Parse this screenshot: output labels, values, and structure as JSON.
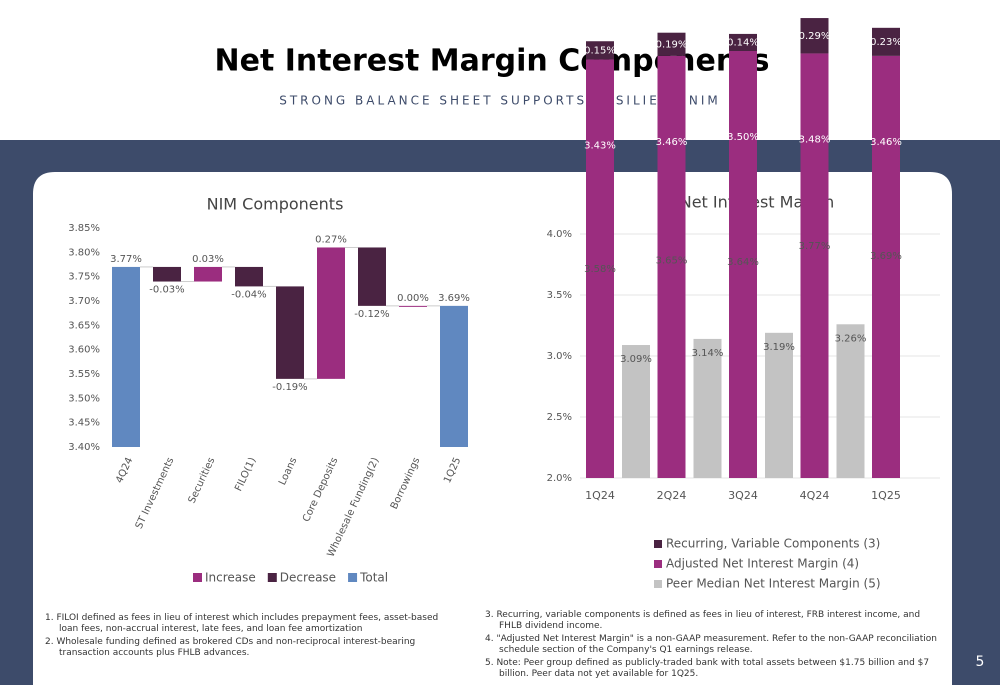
{
  "title": "Net Interest Margin Components",
  "subtitle": "STRONG BALANCE SHEET SUPPORTS RESILIENT NIM",
  "chart_data": [
    {
      "type": "waterfall",
      "title": "NIM Components",
      "categories": [
        "4Q24",
        "ST Investments",
        "Securities",
        "FILO(1)",
        "Loans",
        "Core Deposits",
        "Wholesale Funding(2)",
        "Borrowings",
        "1Q25"
      ],
      "values": [
        3.77,
        -0.03,
        0.03,
        -0.04,
        -0.19,
        0.27,
        -0.12,
        0.0,
        3.69
      ],
      "value_labels": [
        "3.77%",
        "-0.03%",
        "0.03%",
        "-0.04%",
        "-0.19%",
        "0.27%",
        "-0.12%",
        "0.00%",
        "3.69%"
      ],
      "total_indices": [
        0,
        8
      ],
      "legend": [
        {
          "name": "Increase",
          "color": "#9b2d7f"
        },
        {
          "name": "Decrease",
          "color": "#4a2342"
        },
        {
          "name": "Total",
          "color": "#6088c0"
        }
      ],
      "ylim": [
        3.4,
        3.85
      ],
      "yticks": [
        {
          "value": 3.4,
          "label": "3.40%"
        },
        {
          "value": 3.45,
          "label": "3.45%"
        },
        {
          "value": 3.5,
          "label": "3.50%"
        },
        {
          "value": 3.55,
          "label": "3.55%"
        },
        {
          "value": 3.6,
          "label": "3.60%"
        },
        {
          "value": 3.65,
          "label": "3.65%"
        },
        {
          "value": 3.7,
          "label": "3.70%"
        },
        {
          "value": 3.75,
          "label": "3.75%"
        },
        {
          "value": 3.8,
          "label": "3.80%"
        },
        {
          "value": 3.85,
          "label": "3.85%"
        }
      ],
      "grid": false
    },
    {
      "type": "bar",
      "title": "Net Interest Margin",
      "categories": [
        "1Q24",
        "2Q24",
        "3Q24",
        "4Q24",
        "1Q25"
      ],
      "series": [
        {
          "name": "Recurring, Variable Components (3)",
          "color": "#4a2342",
          "stack": true,
          "values": [
            0.15,
            0.19,
            0.14,
            0.29,
            0.23
          ],
          "value_labels": [
            "0.15%",
            "0.19%",
            "0.14%",
            "0.29%",
            "0.23%"
          ]
        },
        {
          "name": "Adjusted Net Interest Margin (4)",
          "color": "#9b2d7f",
          "stack": true,
          "values": [
            3.43,
            3.46,
            3.5,
            3.48,
            3.46
          ],
          "value_labels": [
            "3.43%",
            "3.46%",
            "3.50%",
            "3.48%",
            "3.46%"
          ]
        },
        {
          "name": "Peer Median Net Interest Margin (5)",
          "color": "#c3c3c3",
          "stack": false,
          "values": [
            3.09,
            3.14,
            3.19,
            3.26,
            null
          ],
          "value_labels": [
            "3.09%",
            "3.14%",
            "3.19%",
            "3.26%",
            null
          ]
        }
      ],
      "totals": [
        3.58,
        3.65,
        3.64,
        3.77,
        3.69
      ],
      "totals_labels": [
        "3.58%",
        "3.65%",
        "3.64%",
        "3.77%",
        "3.69%"
      ],
      "ylim": [
        2.0,
        4.0
      ],
      "yticks": [
        {
          "value": 2.0,
          "label": "2.0%"
        },
        {
          "value": 2.5,
          "label": "2.5%"
        },
        {
          "value": 3.0,
          "label": "3.0%"
        },
        {
          "value": 3.5,
          "label": "3.5%"
        },
        {
          "value": 4.0,
          "label": "4.0%"
        }
      ],
      "grid": true
    }
  ],
  "footnotes_left": [
    "1. FILOI defined as fees in lieu of interest which includes prepayment fees, asset-based loan fees, non-accrual interest, late fees, and loan fee amortization",
    "2. Wholesale funding defined as brokered CDs and non-reciprocal interest-bearing transaction accounts plus FHLB advances."
  ],
  "footnotes_right": [
    "3. Recurring, variable components is defined as fees in lieu of interest, FRB interest income, and FHLB dividend income.",
    "4. \"Adjusted Net Interest Margin\" is a non-GAAP measurement. Refer to the non-GAAP reconciliation schedule section of the Company's Q1 earnings release.",
    "5. Note: Peer group defined as publicly-traded bank with total assets between $1.75 billion and $7 billion. Peer data not yet available for 1Q25."
  ],
  "page_number": "5"
}
